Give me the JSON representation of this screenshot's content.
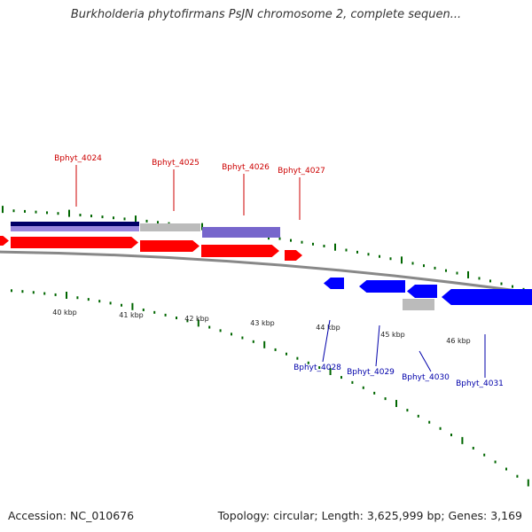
{
  "header": {
    "title": "Burkholderia phytofirmans PsJN chromosome 2, complete sequen..."
  },
  "footer": {
    "accession": "Accession: NC_010676",
    "summary": "Topology: circular; Length: 3,625,999 bp; Genes: 3,169"
  },
  "colors": {
    "forward_label": "#cc0000",
    "reverse_label": "#0000aa",
    "forward_gene": "#ff0000",
    "reverse_gene": "#0000ff",
    "tick": "#006600",
    "backbone": "#888888",
    "feature_dark": "#000066",
    "feature_light": "#7766cc",
    "feature_gray": "#bbbbbb"
  },
  "scale": {
    "labels": [
      "40 kbp",
      "41 kbp",
      "42 kbp",
      "43 kbp",
      "44 kbp",
      "45 kbp",
      "46 kbp"
    ]
  },
  "genes_forward": [
    {
      "name": "Bphyt_4024",
      "icon": "forward-arrow"
    },
    {
      "name": "Bphyt_4025",
      "icon": "forward-arrow"
    },
    {
      "name": "Bphyt_4026",
      "icon": "forward-arrow"
    },
    {
      "name": "Bphyt_4027",
      "icon": "forward-arrow"
    }
  ],
  "genes_reverse": [
    {
      "name": "Bphyt_4028",
      "icon": "reverse-arrow"
    },
    {
      "name": "Bphyt_4029",
      "icon": "reverse-arrow"
    },
    {
      "name": "Bphyt_4030",
      "icon": "reverse-arrow"
    },
    {
      "name": "Bphyt_4031",
      "icon": "reverse-arrow"
    }
  ]
}
